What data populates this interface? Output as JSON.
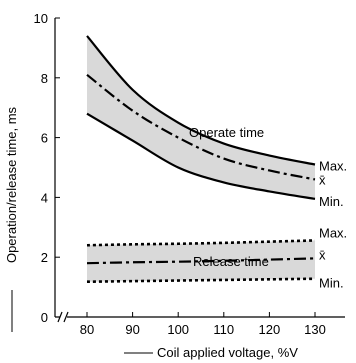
{
  "chart_data": {
    "type": "line",
    "xlabel": "Coil applied voltage, %V",
    "ylabel": "Operation/release time, ms",
    "xlim": [
      75,
      135
    ],
    "ylim": [
      0,
      10
    ],
    "x_ticks": [
      80,
      90,
      100,
      110,
      120,
      130
    ],
    "y_ticks": [
      0,
      2,
      4,
      6,
      8,
      10
    ],
    "x_tick_labels": [
      "80",
      "90",
      "100",
      "110",
      "120",
      "130"
    ],
    "y_tick_labels": [
      "0",
      "2",
      "4",
      "6",
      "8",
      "10"
    ],
    "axis_break": true,
    "grid": false,
    "groups": [
      {
        "label": "Operate time",
        "x": [
          80,
          90,
          100,
          110,
          120,
          130
        ],
        "max": [
          9.4,
          7.6,
          6.5,
          5.8,
          5.4,
          5.1
        ],
        "mean": [
          8.1,
          6.9,
          6.0,
          5.3,
          4.9,
          4.6
        ],
        "min": [
          6.8,
          5.9,
          5.0,
          4.5,
          4.2,
          3.95
        ],
        "band_color": "#d9d9d9",
        "end_labels": {
          "max": "Max.",
          "mean": "x̄",
          "min": "Min."
        }
      },
      {
        "label": "Release time",
        "x": [
          80,
          90,
          100,
          110,
          120,
          130
        ],
        "max": [
          2.4,
          2.43,
          2.45,
          2.48,
          2.52,
          2.56
        ],
        "mean": [
          1.8,
          1.83,
          1.85,
          1.88,
          1.92,
          1.96
        ],
        "min": [
          1.18,
          1.2,
          1.22,
          1.24,
          1.26,
          1.28
        ],
        "band_color": "#d9d9d9",
        "end_labels": {
          "max": "Max.",
          "mean": "x̄",
          "min": "Min."
        }
      }
    ]
  }
}
